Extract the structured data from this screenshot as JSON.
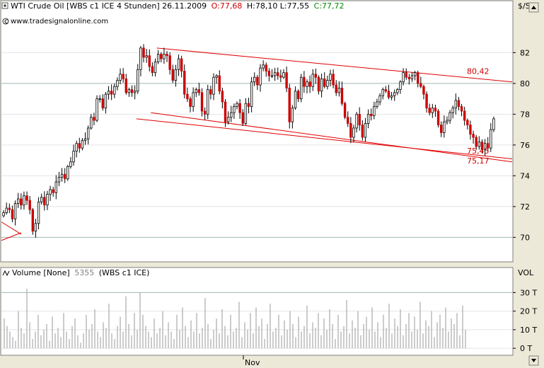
{
  "header": {
    "instrument": "WTI Crude Oil [WBS c1 ICE  4 Stunden] 26.11.2009",
    "open_label": "O:77,68",
    "hlc_label": "H:78,10 L:77,55",
    "close_label": "C:77,72",
    "website": "www.tradesignalonline.com",
    "unit_label": "$/Stl",
    "colors": {
      "open": "#cc0000",
      "close": "#008800",
      "text": "#000000"
    }
  },
  "volume_header": {
    "label": "Volume [None]",
    "value": "5355",
    "source": "(WBS c1 ICE)",
    "unit_label": "VOL"
  },
  "chart_data": [
    {
      "type": "candlestick",
      "ylim": [
        68.5,
        84.5
      ],
      "yticks": [
        70,
        72,
        74,
        76,
        78,
        80,
        82
      ],
      "ytick_labels": [
        "70",
        "72",
        "74",
        "76",
        "78",
        "80",
        "82"
      ],
      "highlighted_gridlines": [
        70,
        80
      ],
      "x_marker_label": "Nov",
      "annotations": [
        {
          "text": "80,42",
          "value": 80.42
        },
        {
          "text": "75,45",
          "value": 75.45
        },
        {
          "text": "75,17",
          "value": 75.17
        }
      ],
      "trendlines": [
        {
          "name": "channel-upper",
          "points": [
            [
              53,
              82.3
            ],
            [
              179,
              80.1
            ]
          ]
        },
        {
          "name": "channel-lower",
          "points": [
            [
              51,
              78.1
            ],
            [
              179,
              74.9
            ]
          ]
        },
        {
          "name": "support",
          "points": [
            [
              46,
              77.7
            ],
            [
              179,
              75.1
            ]
          ]
        }
      ],
      "close": [
        71.6,
        71.9,
        71.8,
        71.2,
        72.2,
        72.5,
        72.1,
        72.7,
        72.4,
        71.8,
        70.4,
        70.9,
        72.3,
        72.6,
        72.1,
        72.8,
        73.1,
        72.9,
        73.6,
        73.9,
        74.1,
        73.8,
        74.6,
        74.9,
        75.6,
        76.1,
        75.8,
        76.3,
        76.4,
        77.1,
        77.8,
        77.6,
        79.0,
        79.0,
        78.4,
        79.3,
        79.5,
        79.3,
        79.8,
        80.2,
        80.6,
        80.3,
        79.4,
        79.6,
        79.4,
        79.5,
        80.9,
        82.3,
        81.7,
        81.8,
        81.1,
        80.7,
        81.4,
        81.9,
        81.6,
        81.9,
        81.8,
        80.9,
        80.2,
        80.9,
        81.6,
        80.8,
        79.3,
        79.0,
        78.5,
        79.4,
        79.6,
        79.4,
        78.2,
        78.0,
        79.6,
        79.3,
        80.4,
        80.5,
        79.5,
        78.8,
        77.5,
        77.8,
        78.1,
        78.5,
        78.7,
        78.1,
        77.4,
        78.7,
        78.5,
        80.1,
        80.4,
        79.9,
        81.0,
        81.2,
        80.8,
        80.5,
        80.5,
        80.7,
        80.5,
        80.4,
        80.7,
        79.7,
        77.5,
        78.4,
        79.5,
        79.0,
        80.4,
        79.8,
        80.1,
        79.8,
        80.6,
        80.4,
        79.5,
        80.3,
        79.8,
        80.2,
        80.6,
        79.9,
        79.4,
        79.7,
        78.7,
        77.8,
        77.4,
        76.5,
        77.1,
        78.0,
        77.3,
        76.5,
        77.4,
        78.0,
        77.9,
        78.5,
        78.8,
        79.2,
        79.6,
        79.5,
        79.1,
        79.2,
        79.4,
        79.6,
        80.1,
        80.7,
        80.4,
        80.3,
        80.5,
        80.7,
        80.0,
        79.8,
        79.3,
        78.4,
        78.1,
        78.4,
        78.2,
        77.3,
        76.8,
        77.5,
        77.6,
        78.1,
        78.4,
        78.9,
        78.5,
        78.2,
        77.6,
        77.3,
        76.7,
        76.5,
        75.9,
        76.2,
        75.7,
        76.1,
        75.8,
        77.0,
        77.7
      ]
    },
    {
      "type": "bar",
      "ylim": [
        -3,
        37
      ],
      "yticks": [
        0,
        10,
        20,
        30
      ],
      "ytick_labels": [
        "0 T",
        "10 T",
        "20 T",
        "30 T"
      ],
      "highlighted_gridlines": [
        30
      ],
      "values": [
        16,
        12,
        9,
        6,
        4,
        20,
        11,
        8,
        32,
        14,
        5,
        9,
        18,
        7,
        10,
        13,
        4,
        17,
        8,
        11,
        6,
        19,
        9,
        5,
        12,
        16,
        7,
        3,
        8,
        18,
        10,
        13,
        21,
        9,
        6,
        14,
        11,
        24,
        8,
        5,
        12,
        17,
        9,
        28,
        13,
        7,
        19,
        10,
        30,
        18,
        12,
        9,
        6,
        16,
        8,
        11,
        20,
        7,
        14,
        9,
        5,
        18,
        10,
        22,
        12,
        6,
        15,
        9,
        19,
        8,
        11,
        27,
        13,
        5,
        10,
        16,
        8,
        21,
        12,
        7,
        18,
        9,
        11,
        25,
        6,
        14,
        10,
        19,
        8,
        22,
        12,
        16,
        5,
        13,
        24,
        9,
        11,
        18,
        7,
        15,
        10,
        20,
        13,
        6,
        17,
        9,
        12,
        23,
        8,
        14,
        11,
        19,
        7,
        16,
        10,
        21,
        13,
        5,
        18,
        9,
        12,
        26,
        8,
        15,
        11,
        20,
        7,
        13,
        17,
        10,
        22,
        9,
        14,
        6,
        18,
        11,
        24,
        8,
        16,
        12,
        21,
        7,
        13,
        19,
        9,
        17,
        10,
        25,
        8,
        15,
        12,
        20,
        6,
        14,
        18,
        11,
        22,
        9,
        16,
        13,
        19,
        7,
        23,
        10
      ]
    }
  ]
}
